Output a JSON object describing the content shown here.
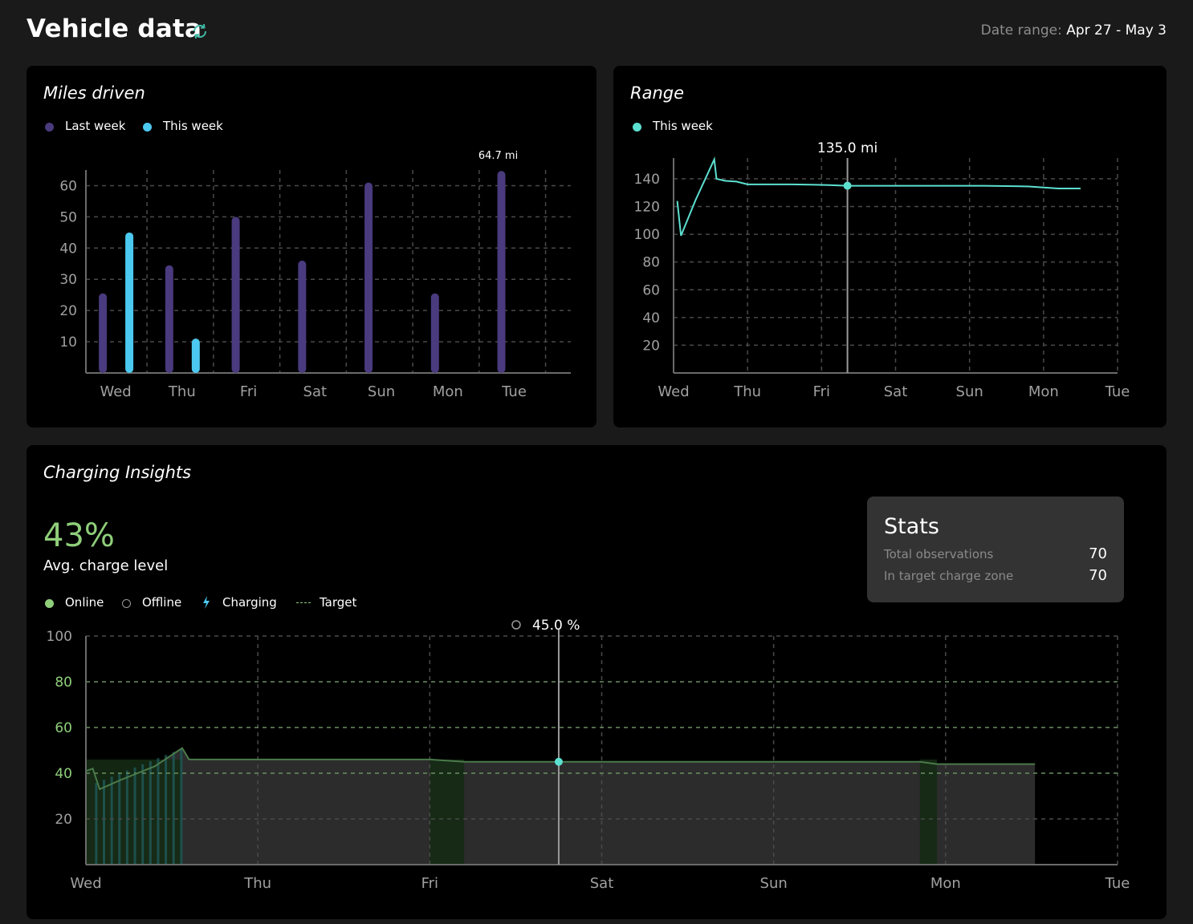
{
  "header": {
    "title": "Vehicle data",
    "refresh_icon": "refresh-icon",
    "date_range_label": "Date range:",
    "date_range_value": "Apr 27 - May 3"
  },
  "colors": {
    "last_week": "#4a3a7e",
    "this_week": "#4cc9f0",
    "range_line": "#5ce0d0",
    "online": "#8fcf7a",
    "target": "#8fcf7a"
  },
  "miles_card": {
    "title": "Miles driven",
    "legend": [
      {
        "label": "Last week",
        "color": "#4a3a7e"
      },
      {
        "label": "This week",
        "color": "#4cc9f0"
      }
    ],
    "annotation": "64.7 mi"
  },
  "range_card": {
    "title": "Range",
    "legend": [
      {
        "label": "This week",
        "color": "#5ce0d0"
      }
    ],
    "tooltip": "135.0 mi"
  },
  "charging_card": {
    "title": "Charging Insights",
    "avg_value": "43%",
    "avg_label": "Avg. charge level",
    "legend": {
      "online": "Online",
      "offline": "Offline",
      "charging": "Charging",
      "target": "Target"
    },
    "tooltip": "45.0 %",
    "stats": {
      "title": "Stats",
      "rows": [
        {
          "label": "Total observations",
          "value": "70"
        },
        {
          "label": "In target charge zone",
          "value": "70"
        }
      ]
    }
  },
  "chart_data": [
    {
      "type": "bar",
      "title": "Miles driven",
      "categories": [
        "Wed",
        "Thu",
        "Fri",
        "Sat",
        "Sun",
        "Mon",
        "Tue"
      ],
      "series": [
        {
          "name": "Last week",
          "values": [
            25.5,
            34.5,
            50,
            36,
            61,
            25.5,
            64.7
          ]
        },
        {
          "name": "This week",
          "values": [
            45,
            11,
            null,
            null,
            null,
            null,
            null
          ]
        }
      ],
      "yticks": [
        10,
        20,
        30,
        40,
        50,
        60
      ],
      "ylim": [
        0,
        65
      ],
      "annotations": [
        {
          "category": "Tue",
          "text": "64.7 mi"
        }
      ],
      "grid": true,
      "legend": "top-left"
    },
    {
      "type": "line",
      "title": "Range",
      "xticks": [
        "Wed",
        "Thu",
        "Fri",
        "Sat",
        "Sun",
        "Mon",
        "Tue"
      ],
      "series": [
        {
          "name": "This week",
          "x": [
            0.05,
            0.1,
            0.3,
            0.55,
            0.58,
            0.7,
            0.85,
            1.0,
            1.6,
            2.1,
            2.35,
            2.9,
            3.3,
            3.7,
            4.2,
            4.8,
            5.2,
            5.5
          ],
          "y": [
            124,
            99,
            125,
            154,
            140,
            138.5,
            138,
            136,
            136,
            135.5,
            135,
            135,
            135,
            135,
            135,
            134.5,
            133,
            133
          ]
        }
      ],
      "highlight": {
        "x": 2.35,
        "y": 135.0,
        "label": "135.0 mi"
      },
      "yticks": [
        20,
        40,
        60,
        80,
        100,
        120,
        140
      ],
      "ylim": [
        0,
        155
      ],
      "xlim": [
        0,
        6
      ],
      "grid": true,
      "legend": "top-left"
    },
    {
      "type": "area",
      "title": "Charging Insights",
      "xticks": [
        "Wed",
        "Thu",
        "Fri",
        "Sat",
        "Sun",
        "Mon",
        "Tue"
      ],
      "series": [
        {
          "name": "Online",
          "x": [
            0.0,
            0.04,
            0.08,
            0.2,
            0.3,
            0.4,
            0.5,
            0.56,
            0.6,
            0.7,
            1.0,
            1.5,
            2.0,
            2.2,
            2.5,
            3.0,
            3.5,
            4.0,
            4.5,
            4.85,
            4.95,
            5.0,
            5.52
          ],
          "y": [
            41,
            42,
            33,
            37,
            40,
            43,
            48,
            51,
            46,
            46,
            46,
            46,
            46,
            45,
            45,
            45,
            45,
            45,
            45,
            45,
            44,
            44,
            44
          ]
        }
      ],
      "target": [
        40,
        80
      ],
      "highlight": {
        "x": 2.75,
        "y": 45.0,
        "label": "45.0 %"
      },
      "yticks": [
        20,
        40,
        60,
        80,
        100
      ],
      "ylim": [
        0,
        100
      ],
      "xlim": [
        0,
        6
      ],
      "grid": true,
      "legend": "top-left"
    }
  ]
}
